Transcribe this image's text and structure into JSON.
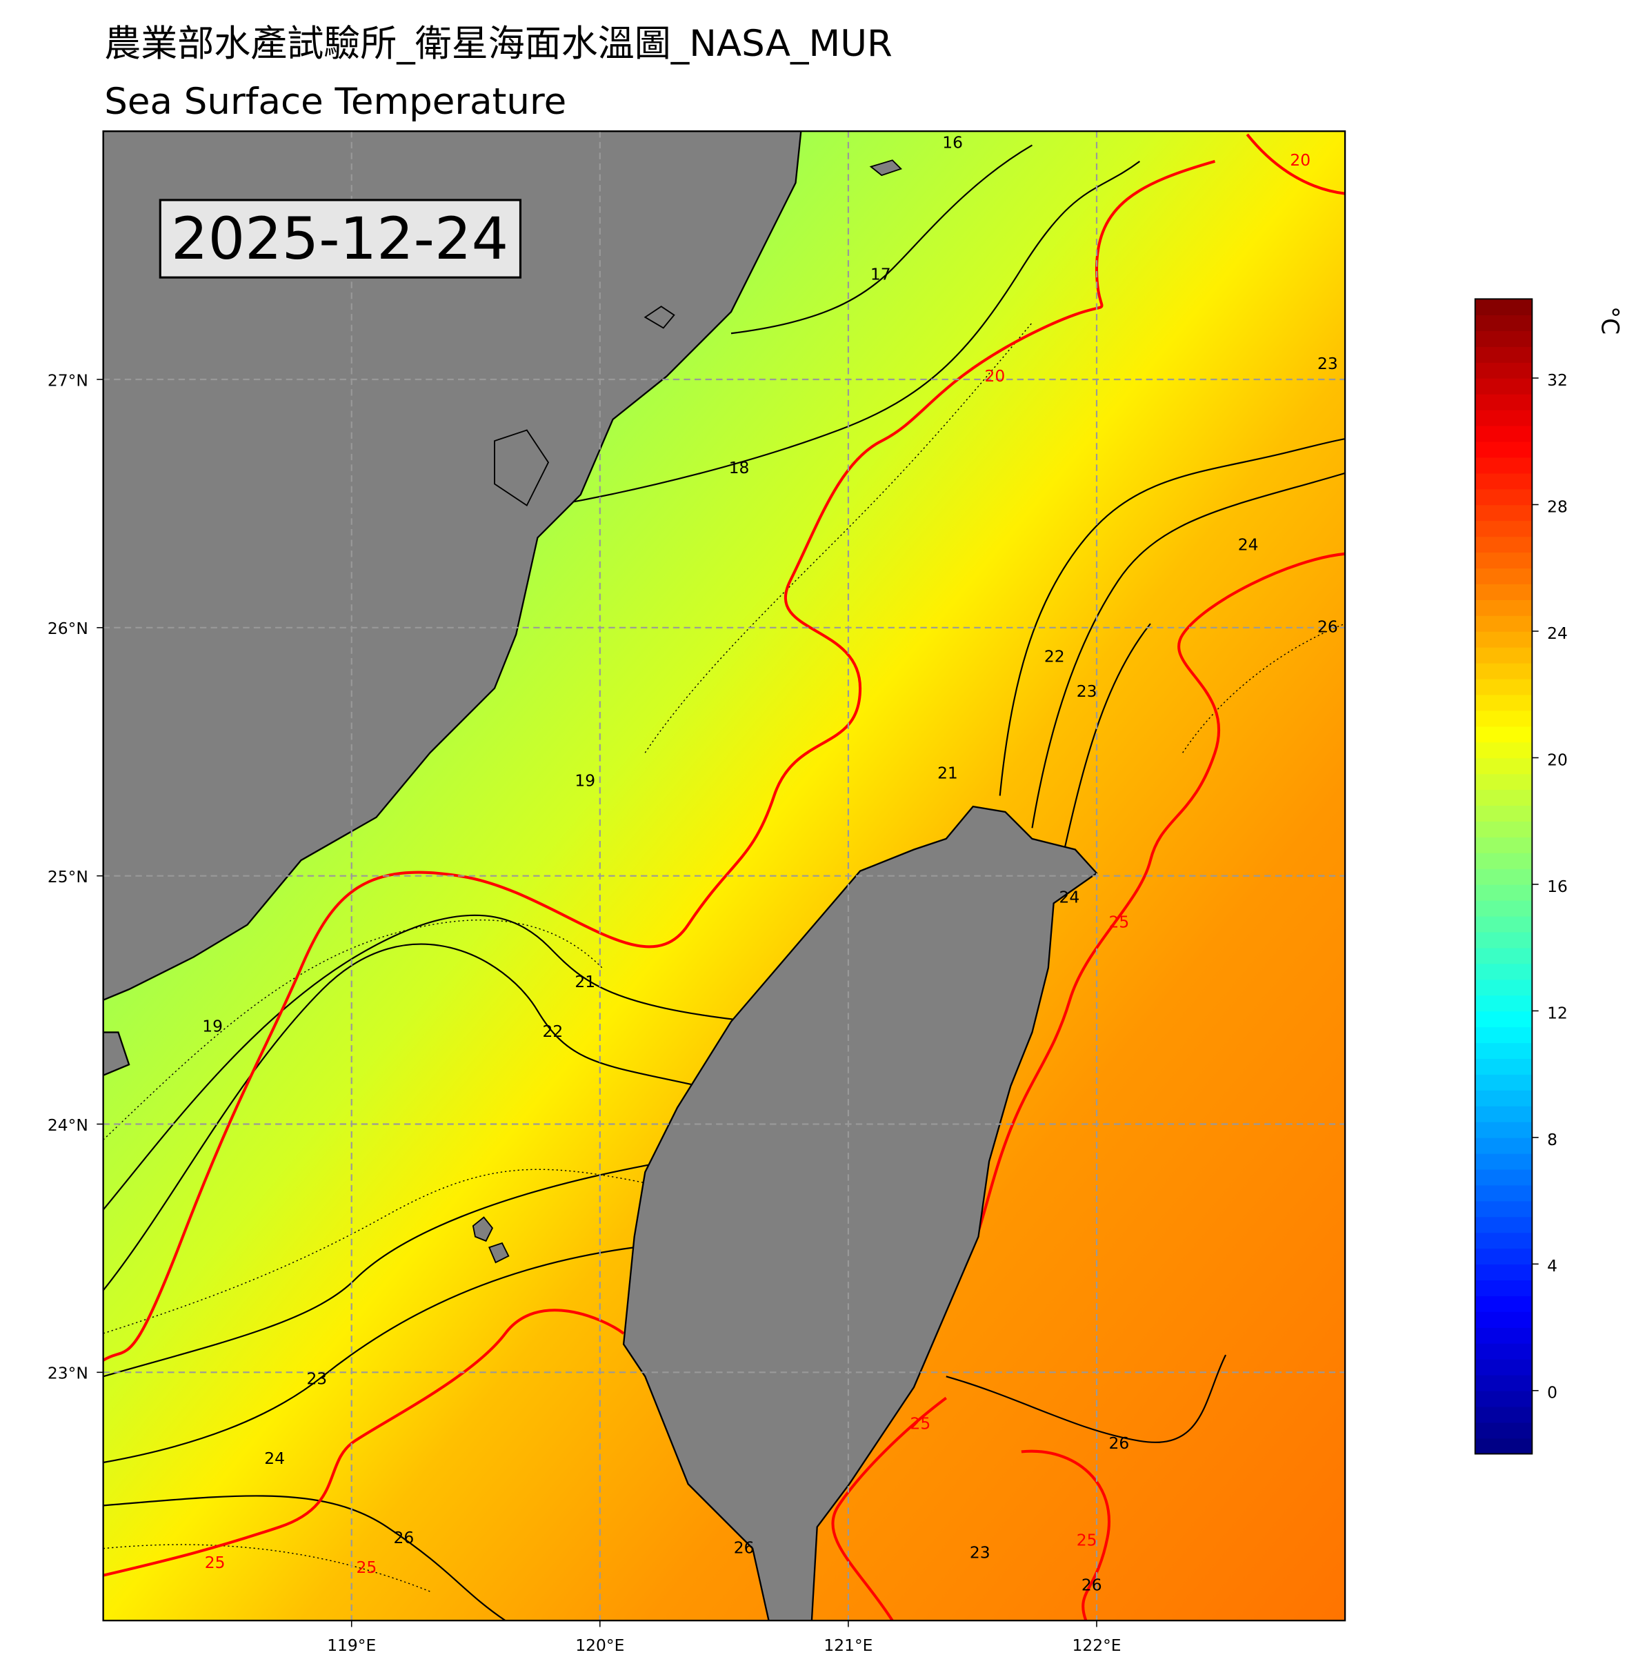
{
  "map_data": {
    "title": "農業部水產試驗所_衛星海面水溫圖_NASA_MUR",
    "subtitle": "Sea Surface Temperature",
    "date": "2025-12-24",
    "xlim": [
      118,
      123
    ],
    "ylim": [
      22,
      28
    ],
    "grid": true,
    "xticks": [
      {
        "value": 119,
        "label": "119°E"
      },
      {
        "value": 120,
        "label": "120°E"
      },
      {
        "value": 121,
        "label": "121°E"
      },
      {
        "value": 122,
        "label": "122°E"
      }
    ],
    "yticks": [
      {
        "value": 23,
        "label": "23°N"
      },
      {
        "value": 24,
        "label": "24°N"
      },
      {
        "value": 25,
        "label": "25°N"
      },
      {
        "value": 26,
        "label": "26°N"
      },
      {
        "value": 27,
        "label": "27°N"
      }
    ],
    "colorbar": {
      "label": "°C",
      "cmap": "jet",
      "lim": [
        -2,
        34.5
      ],
      "ticks": [
        0,
        4,
        8,
        12,
        16,
        20,
        24,
        28,
        32
      ]
    },
    "contour_labels": [
      {
        "value": 16,
        "lon": 121.42,
        "lat": 27.95
      },
      {
        "value": 17,
        "lon": 121.13,
        "lat": 27.42
      },
      {
        "value": 18,
        "lon": 120.56,
        "lat": 26.64
      },
      {
        "value": 19,
        "lon": 119.94,
        "lat": 25.38
      },
      {
        "value": 20,
        "lon": 121.59,
        "lat": 27.01
      },
      {
        "value": 21,
        "lon": 121.4,
        "lat": 25.41
      },
      {
        "value": 22,
        "lon": 121.83,
        "lat": 25.88
      },
      {
        "value": 23,
        "lon": 121.96,
        "lat": 25.74
      },
      {
        "value": 24,
        "lon": 122.61,
        "lat": 26.33
      },
      {
        "value": 26,
        "lon": 122.93,
        "lat": 26.0
      },
      {
        "value": 23,
        "lon": 122.93,
        "lat": 27.06
      },
      {
        "value": 21,
        "lon": 119.94,
        "lat": 24.57
      },
      {
        "value": 22,
        "lon": 119.81,
        "lat": 24.37
      },
      {
        "value": 23,
        "lon": 118.86,
        "lat": 22.97
      },
      {
        "value": 24,
        "lon": 118.69,
        "lat": 22.65
      },
      {
        "value": 25,
        "lon": 118.45,
        "lat": 22.23
      },
      {
        "value": 25,
        "lon": 119.06,
        "lat": 22.21
      },
      {
        "value": 26,
        "lon": 119.21,
        "lat": 22.33
      },
      {
        "value": 26,
        "lon": 120.58,
        "lat": 22.29
      },
      {
        "value": 25,
        "lon": 121.29,
        "lat": 22.79
      },
      {
        "value": 26,
        "lon": 122.09,
        "lat": 22.71
      },
      {
        "value": 23,
        "lon": 121.53,
        "lat": 22.27
      },
      {
        "value": 25,
        "lon": 121.96,
        "lat": 22.32
      },
      {
        "value": 26,
        "lon": 121.98,
        "lat": 22.14
      },
      {
        "value": 25,
        "lon": 122.09,
        "lat": 24.81
      },
      {
        "value": 24,
        "lon": 121.89,
        "lat": 24.91
      },
      {
        "value": 20,
        "lon": 122.82,
        "lat": 27.88
      },
      {
        "value": 19,
        "lon": 118.44,
        "lat": 24.39
      }
    ]
  }
}
